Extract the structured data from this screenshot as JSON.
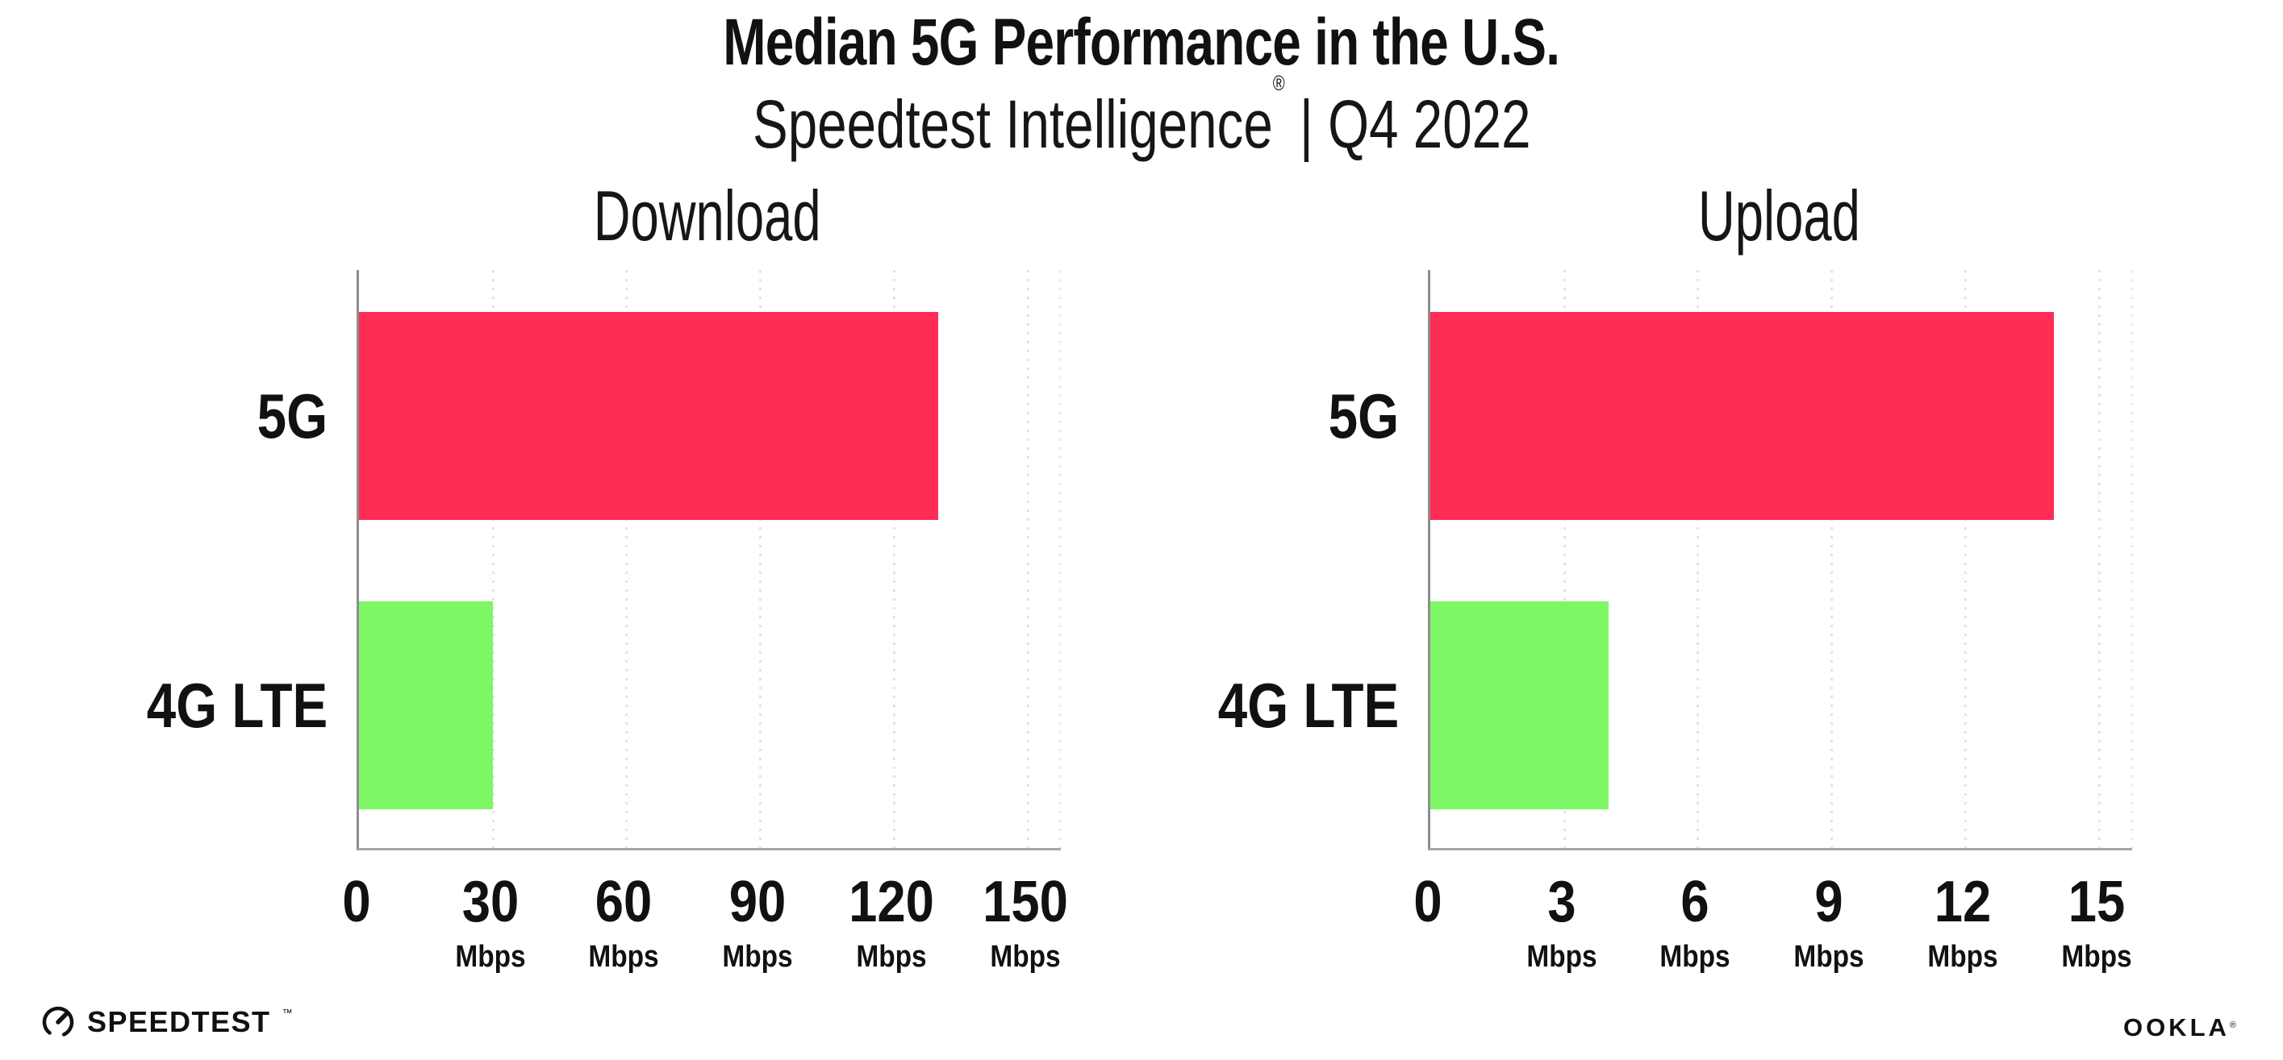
{
  "header": {
    "title": "Median 5G Performance in the U.S.",
    "subtitle": {
      "brand": "Speedtest Intelligence",
      "registered_mark": "®",
      "rest": " | Q4 2022"
    }
  },
  "chart_data": [
    {
      "type": "bar",
      "orientation": "horizontal",
      "title": "Download",
      "categories": [
        "5G",
        "4G LTE"
      ],
      "values": [
        130,
        30
      ],
      "value_unit": "Mbps",
      "xticks": [
        0,
        30,
        60,
        90,
        120,
        150
      ],
      "xtick_unit": "Mbps",
      "xlim": [
        0,
        157.5
      ],
      "grid": "dotted vertical gridlines at major ticks",
      "legend": "none",
      "bar_colors": [
        "#FF2D55",
        "#7DF765"
      ]
    },
    {
      "type": "bar",
      "orientation": "horizontal",
      "title": "Upload",
      "categories": [
        "5G",
        "4G LTE"
      ],
      "values": [
        14,
        4
      ],
      "value_unit": "Mbps",
      "xticks": [
        0,
        3,
        6,
        9,
        12,
        15
      ],
      "xtick_unit": "Mbps",
      "xlim": [
        0,
        15.75
      ],
      "grid": "dotted vertical gridlines at major ticks",
      "legend": "none",
      "bar_colors": [
        "#FF2D55",
        "#7DF765"
      ]
    }
  ],
  "footer": {
    "speedtest_logo_text": "SPEEDTEST",
    "speedtest_trademark": "™",
    "ookla_logo_text": "OOKLA",
    "ookla_registered_mark": "®"
  },
  "colors": {
    "background": "#FFFFFF",
    "text": "#111111",
    "bar_5g": "#FF2D55",
    "bar_4g_lte": "#7DF765",
    "gridline": "#E2E2EA",
    "axis": "#96969B"
  }
}
